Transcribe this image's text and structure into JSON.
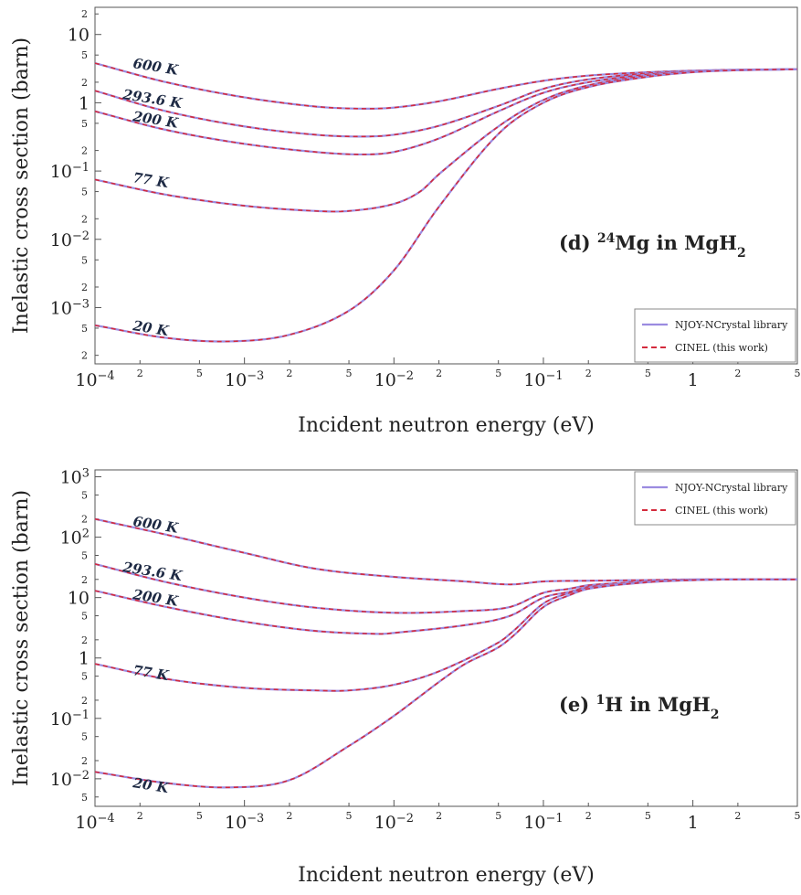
{
  "chart_data": [
    {
      "id": "panel-d",
      "type": "line",
      "xscale": "log",
      "yscale": "log",
      "xlim": [
        0.0001,
        5
      ],
      "ylim": [
        0.00015,
        25
      ],
      "xlabel": "Incident neutron energy (eV)",
      "ylabel": "Inelastic cross section (barn)",
      "annotation": {
        "prefix": "(d) ",
        "sup": "24",
        "element": "Mg",
        "mid": " in MgH",
        "sub": "2"
      },
      "legend": {
        "position": "bottom-right",
        "entries": [
          "NJOY-NCrystal library",
          "CINEL (this work)"
        ]
      },
      "major_xticks": [
        {
          "v": 0.0001,
          "base": "10",
          "exp": "−4"
        },
        {
          "v": 0.001,
          "base": "10",
          "exp": "−3"
        },
        {
          "v": 0.01,
          "base": "10",
          "exp": "−2"
        },
        {
          "v": 0.1,
          "base": "10",
          "exp": "−1"
        },
        {
          "v": 1,
          "label": "1"
        }
      ],
      "major_yticks": [
        {
          "v": 0.001,
          "base": "10",
          "exp": "−3"
        },
        {
          "v": 0.01,
          "base": "10",
          "exp": "−2"
        },
        {
          "v": 0.1,
          "base": "10",
          "exp": "−1"
        },
        {
          "v": 1,
          "label": "1"
        },
        {
          "v": 10,
          "label": "10"
        }
      ],
      "series": [
        {
          "name": "600 K",
          "x": [
            0.0001,
            0.0003,
            0.001,
            0.003,
            0.006,
            0.01,
            0.02,
            0.05,
            0.1,
            0.2,
            0.5,
            1,
            2,
            5
          ],
          "y": [
            3.8,
            2.0,
            1.2,
            0.88,
            0.82,
            0.85,
            1.05,
            1.6,
            2.1,
            2.5,
            2.8,
            2.95,
            3.05,
            3.1
          ]
        },
        {
          "name": "293.6 K",
          "x": [
            0.0001,
            0.0003,
            0.001,
            0.003,
            0.006,
            0.01,
            0.02,
            0.05,
            0.1,
            0.2,
            0.5,
            1,
            2,
            5
          ],
          "y": [
            1.5,
            0.75,
            0.45,
            0.34,
            0.32,
            0.34,
            0.46,
            0.9,
            1.6,
            2.2,
            2.7,
            2.9,
            3.0,
            3.1
          ]
        },
        {
          "name": "200 K",
          "x": [
            0.0001,
            0.0003,
            0.001,
            0.003,
            0.006,
            0.01,
            0.02,
            0.05,
            0.1,
            0.2,
            0.5,
            1,
            2,
            5
          ],
          "y": [
            0.75,
            0.4,
            0.25,
            0.19,
            0.175,
            0.19,
            0.3,
            0.75,
            1.4,
            2.0,
            2.6,
            2.85,
            3.0,
            3.1
          ]
        },
        {
          "name": "77 K",
          "x": [
            0.0001,
            0.0003,
            0.001,
            0.003,
            0.005,
            0.01,
            0.015,
            0.02,
            0.05,
            0.1,
            0.2,
            0.5,
            1,
            2,
            5
          ],
          "y": [
            0.075,
            0.045,
            0.031,
            0.026,
            0.026,
            0.033,
            0.05,
            0.09,
            0.45,
            1.1,
            1.8,
            2.5,
            2.85,
            3.0,
            3.1
          ]
        },
        {
          "name": "20 K",
          "x": [
            0.0001,
            0.0003,
            0.0008,
            0.002,
            0.005,
            0.01,
            0.02,
            0.05,
            0.1,
            0.2,
            0.5,
            1,
            2,
            5
          ],
          "y": [
            0.00055,
            0.00036,
            0.00032,
            0.0004,
            0.0009,
            0.0035,
            0.03,
            0.35,
            1.0,
            1.7,
            2.4,
            2.8,
            3.0,
            3.1
          ]
        }
      ]
    },
    {
      "id": "panel-e",
      "type": "line",
      "xscale": "log",
      "yscale": "log",
      "xlim": [
        0.0001,
        5
      ],
      "ylim": [
        0.0035,
        1300
      ],
      "xlabel": "Incident neutron energy (eV)",
      "ylabel": "Inelastic cross section (barn)",
      "annotation": {
        "prefix": "(e) ",
        "sup": "1",
        "element": "H",
        "mid": " in MgH",
        "sub": "2"
      },
      "legend": {
        "position": "top-right",
        "entries": [
          "NJOY-NCrystal library",
          "CINEL (this work)"
        ]
      },
      "major_xticks": [
        {
          "v": 0.0001,
          "base": "10",
          "exp": "−4"
        },
        {
          "v": 0.001,
          "base": "10",
          "exp": "−3"
        },
        {
          "v": 0.01,
          "base": "10",
          "exp": "−2"
        },
        {
          "v": 0.1,
          "base": "10",
          "exp": "−1"
        },
        {
          "v": 1,
          "label": "1"
        }
      ],
      "major_yticks": [
        {
          "v": 0.01,
          "base": "10",
          "exp": "−2"
        },
        {
          "v": 0.1,
          "base": "10",
          "exp": "−1"
        },
        {
          "v": 1,
          "label": "1"
        },
        {
          "v": 10,
          "label": "10"
        },
        {
          "v": 100,
          "base": "10",
          "exp": "2"
        },
        {
          "v": 1000,
          "base": "10",
          "exp": "3"
        }
      ],
      "series": [
        {
          "name": "600 K",
          "x": [
            0.0001,
            0.0003,
            0.001,
            0.003,
            0.01,
            0.03,
            0.06,
            0.1,
            0.2,
            0.5,
            1,
            2,
            5
          ],
          "y": [
            200,
            110,
            55,
            30,
            22,
            18.5,
            16.5,
            18.5,
            19,
            19.5,
            20,
            20,
            20
          ]
        },
        {
          "name": "293.6 K",
          "x": [
            0.0001,
            0.0003,
            0.001,
            0.003,
            0.01,
            0.03,
            0.06,
            0.1,
            0.15,
            0.2,
            0.5,
            1,
            2,
            5
          ],
          "y": [
            36,
            18,
            10,
            6.8,
            5.6,
            6,
            7,
            12,
            14,
            16,
            18.5,
            19.5,
            20,
            20
          ]
        },
        {
          "name": "200 K",
          "x": [
            0.0001,
            0.0003,
            0.001,
            0.003,
            0.008,
            0.01,
            0.03,
            0.06,
            0.1,
            0.15,
            0.2,
            0.5,
            1,
            2,
            5
          ],
          "y": [
            13,
            7,
            4,
            2.8,
            2.5,
            2.6,
            3.5,
            5,
            10,
            12.5,
            15,
            18,
            19.5,
            20,
            20
          ]
        },
        {
          "name": "77 K",
          "x": [
            0.0001,
            0.0003,
            0.001,
            0.003,
            0.005,
            0.01,
            0.02,
            0.05,
            0.065,
            0.1,
            0.15,
            0.2,
            0.5,
            1,
            2,
            5
          ],
          "y": [
            0.8,
            0.45,
            0.32,
            0.29,
            0.29,
            0.36,
            0.6,
            1.8,
            3,
            8,
            12,
            14.5,
            18,
            19.5,
            20,
            20
          ]
        },
        {
          "name": "20 K",
          "x": [
            0.0001,
            0.0003,
            0.0008,
            0.002,
            0.005,
            0.01,
            0.02,
            0.03,
            0.05,
            0.065,
            0.1,
            0.15,
            0.2,
            0.5,
            1,
            2,
            5
          ],
          "y": [
            0.013,
            0.0085,
            0.0072,
            0.0095,
            0.035,
            0.11,
            0.4,
            0.8,
            1.5,
            2.5,
            7,
            11,
            14,
            18,
            19.5,
            20,
            20
          ]
        }
      ]
    }
  ]
}
